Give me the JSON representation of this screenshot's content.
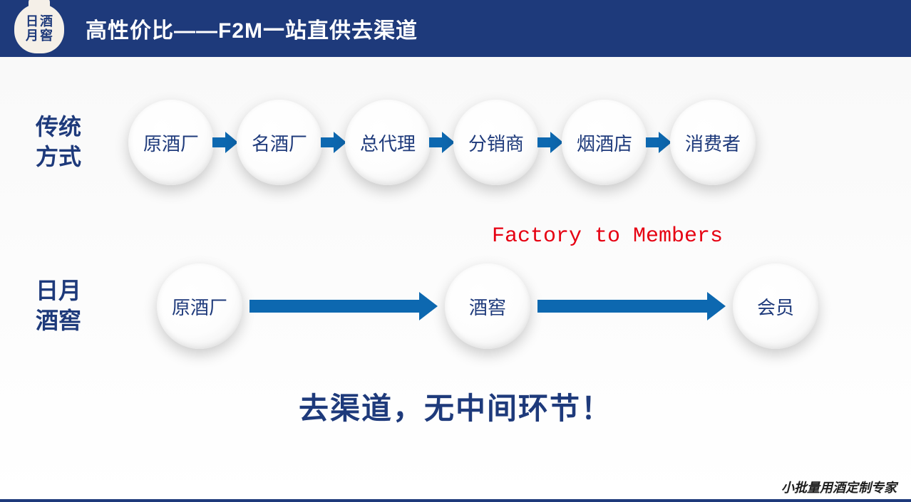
{
  "header": {
    "logo": "日月酒窖",
    "title": "高性价比——F2M一站直供去渠道"
  },
  "row1": {
    "label_line1": "传统",
    "label_line2": "方式",
    "nodes": [
      "原酒厂",
      "名酒厂",
      "总代理",
      "分销商",
      "烟酒店",
      "消费者"
    ]
  },
  "row2": {
    "label_line1": "日月",
    "label_line2": "酒窖",
    "f2m_text": "Factory to Members",
    "nodes": [
      "原酒厂",
      "酒窖",
      "会员"
    ]
  },
  "tagline": "去渠道，无中间环节！",
  "footer": "小批量用酒定制专家",
  "colors": {
    "brand_blue": "#1e3a7b",
    "arrow_blue": "#0d68b0",
    "accent_red": "#e60012",
    "node_bg": "#ffffff"
  }
}
